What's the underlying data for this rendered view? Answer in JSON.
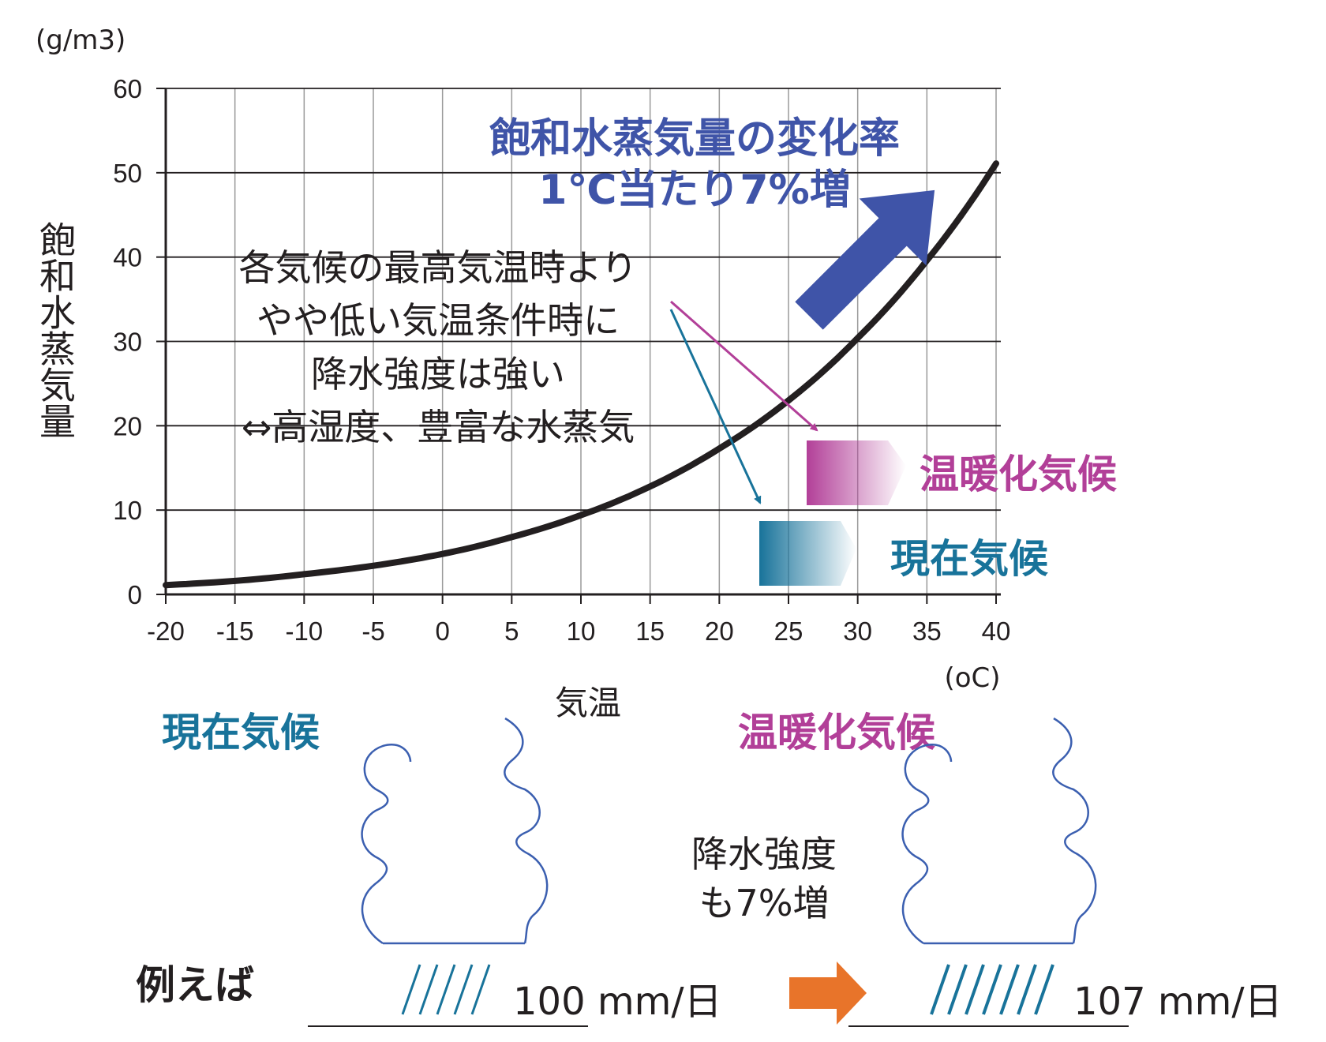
{
  "chart_data": {
    "type": "line",
    "ylabel": "飽和水蒸気量",
    "yunit": "(g/m3)",
    "xlabel": "気温",
    "xunit": "(oC)",
    "xlim": [
      -20,
      40
    ],
    "ylim": [
      0,
      60
    ],
    "x_ticks": [
      -20,
      -15,
      -10,
      -5,
      0,
      5,
      10,
      15,
      20,
      25,
      30,
      35,
      40
    ],
    "y_ticks": [
      0,
      10,
      20,
      30,
      40,
      50,
      60
    ],
    "grid": true,
    "series": [
      {
        "x": [
          -20,
          -15,
          -10,
          -5,
          0,
          5,
          10,
          15,
          20,
          25,
          30,
          35,
          40
        ],
        "y": [
          1.1,
          1.6,
          2.4,
          3.4,
          4.8,
          6.8,
          9.4,
          12.8,
          17.3,
          23.0,
          30.4,
          39.6,
          51.1
        ]
      }
    ],
    "annotations": {
      "rate_title": "飽和水蒸気量の変化率",
      "rate_sub": "1℃当たり7%増",
      "note_lines": [
        "各気候の最高気温時より",
        "やや低い気温条件時に",
        "降水強度は強い",
        "⇔高湿度、豊富な水蒸気"
      ],
      "warm_label": "温暖化気候",
      "current_label": "現在気候"
    }
  },
  "bottom": {
    "current_label": "現在気候",
    "warm_label": "温暖化気候",
    "middle_lines": [
      "降水強度",
      "も7%増"
    ],
    "example_label": "例えば",
    "current_value": "100 mm/日",
    "warm_value": "107 mm/日"
  },
  "colors": {
    "curve": "#231f20",
    "rate_arrow": "#3f54a8",
    "current": "#18739a",
    "warm": "#b23f98",
    "orange_arrow": "#e8742a",
    "cloud": "#3b5fb0"
  }
}
